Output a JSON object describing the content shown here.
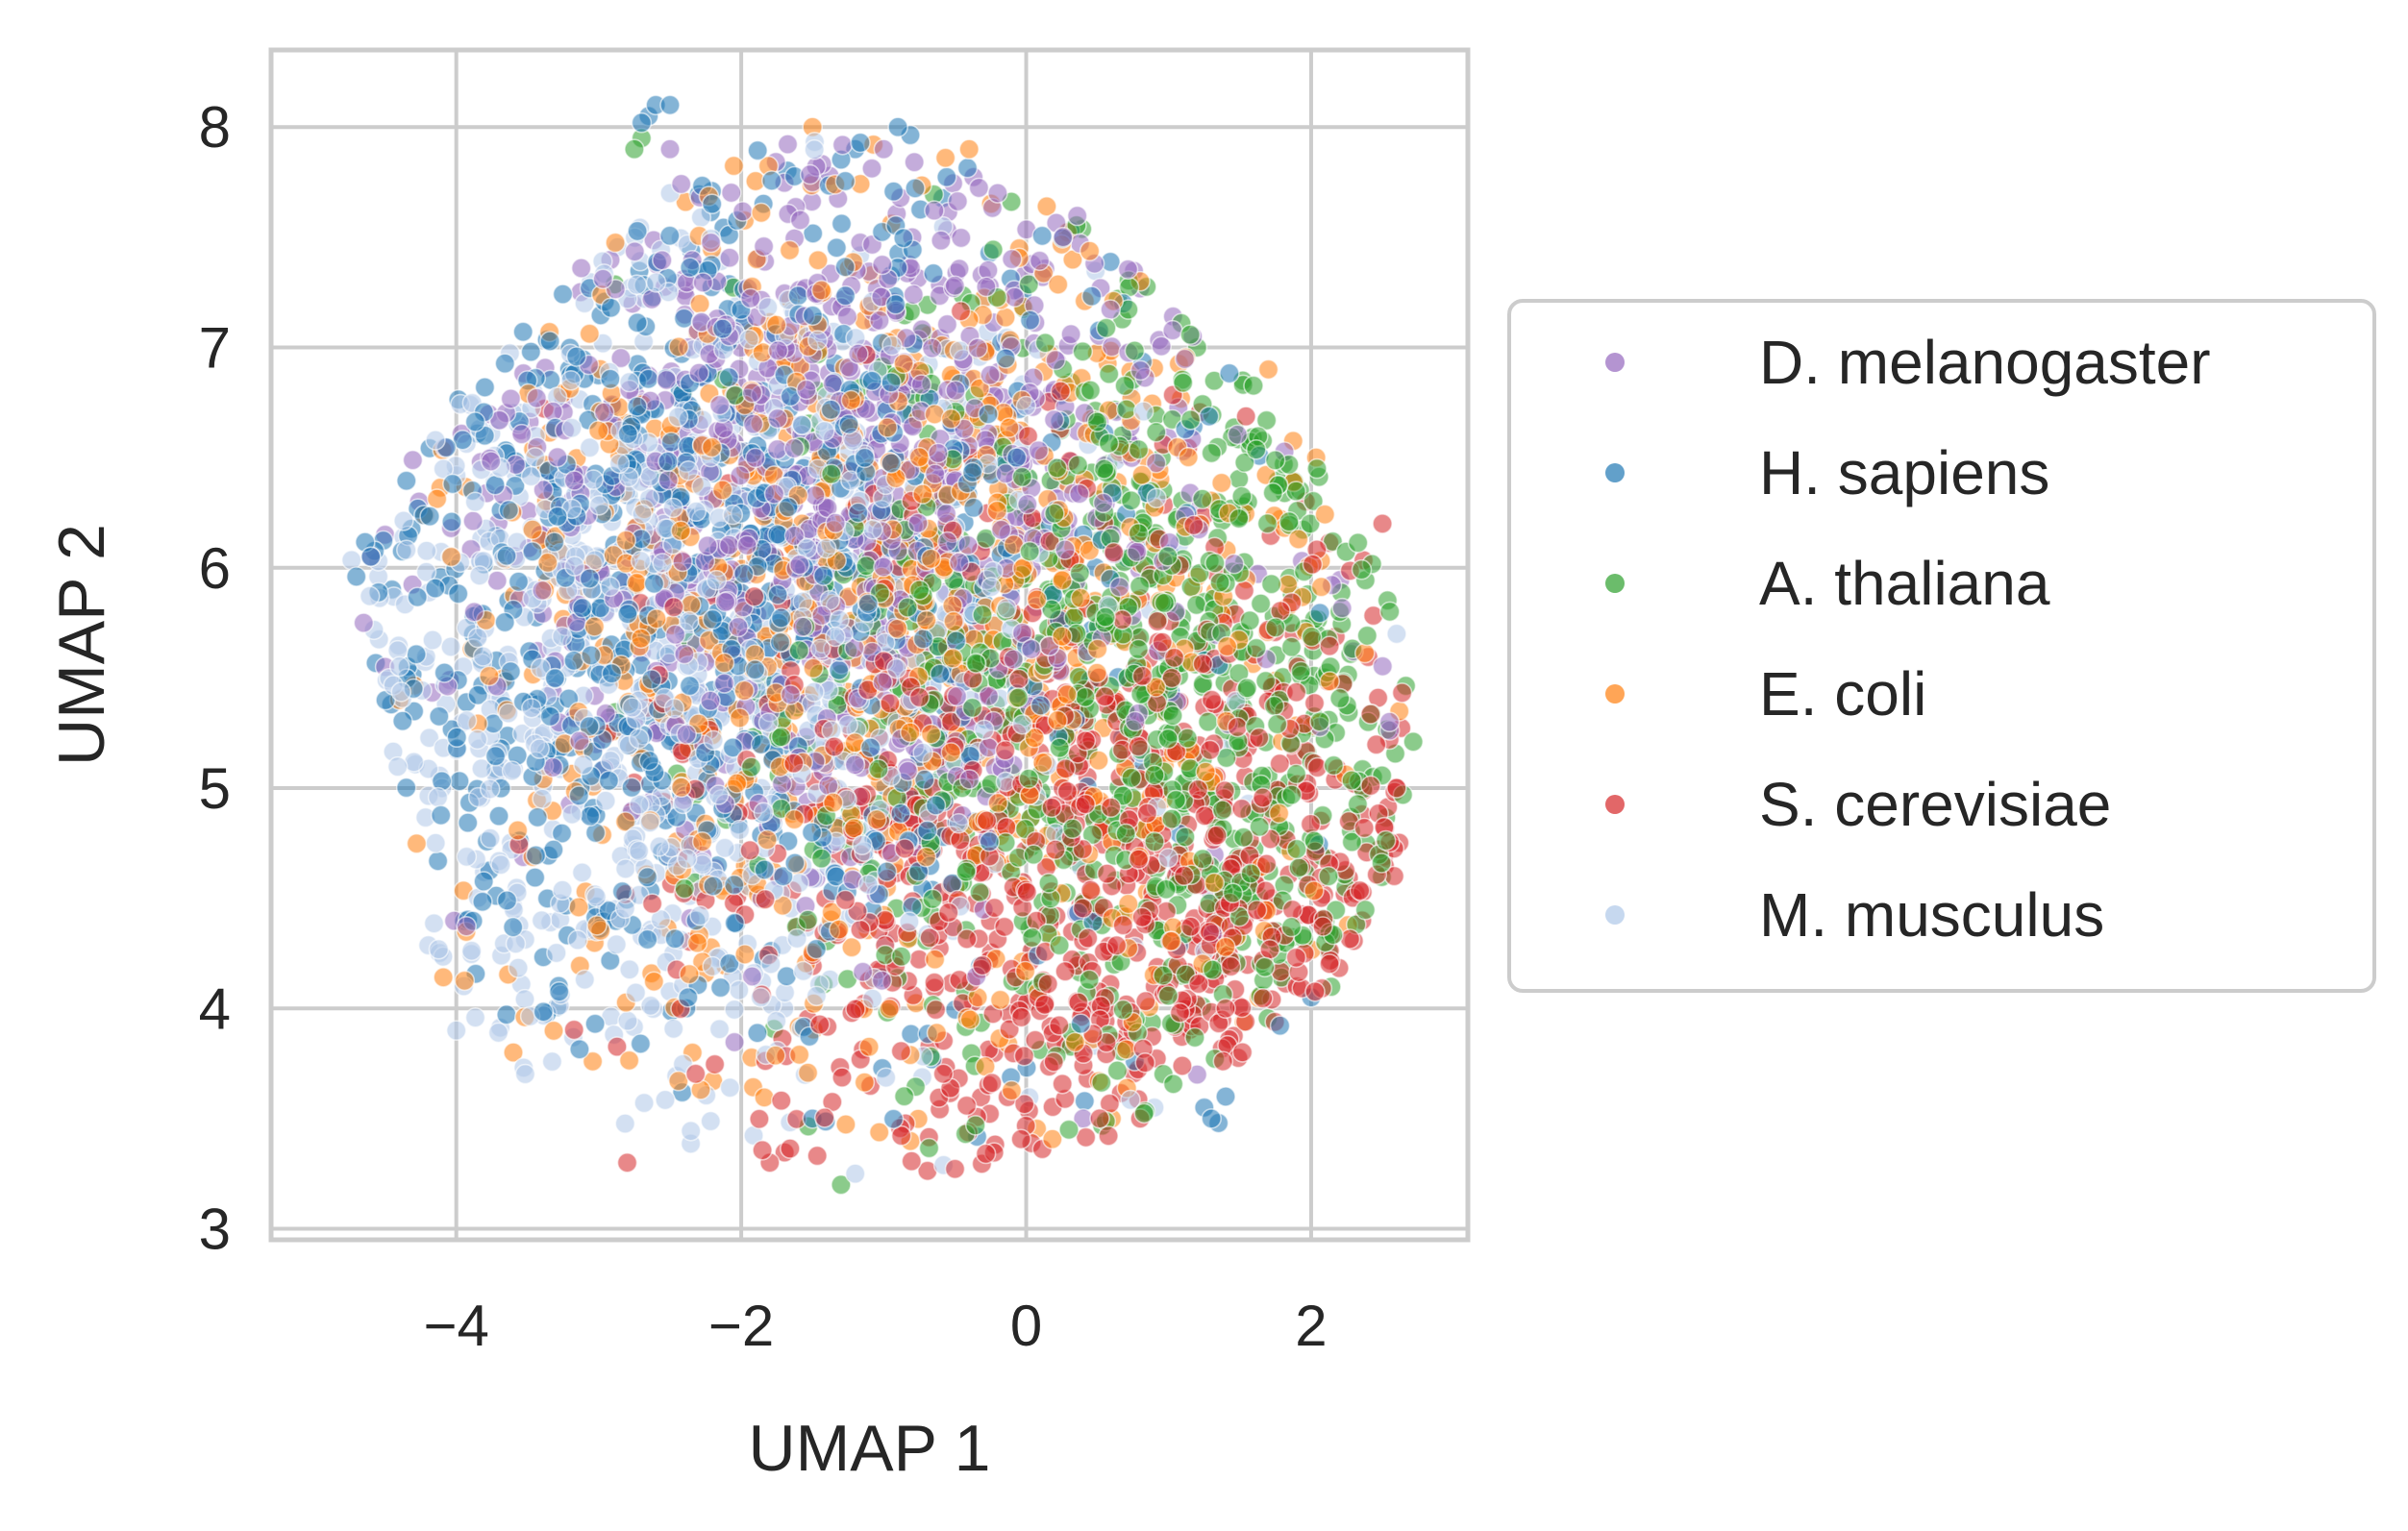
{
  "chart_data": {
    "type": "scatter",
    "title": "",
    "xlabel": "UMAP 1",
    "ylabel": "UMAP 2",
    "xlim": [
      -5.3,
      3.1
    ],
    "ylim": [
      2.95,
      8.35
    ],
    "xticks": [
      -4,
      -2,
      0,
      2
    ],
    "yticks": [
      3,
      4,
      5,
      6,
      7,
      8
    ],
    "xtick_labels": [
      "−4",
      "−2",
      "0",
      "2"
    ],
    "ytick_labels": [
      "3",
      "4",
      "5",
      "6",
      "7",
      "8"
    ],
    "grid": true,
    "legend_position": "center-right outside",
    "point_alpha": 0.55,
    "series": [
      {
        "name": "D. melanogaster",
        "color": "#9467bd",
        "region": {
          "center": [
            -1.3,
            6.4
          ],
          "spread": [
            1.4,
            0.85
          ]
        },
        "points": [
          [
            -4.6,
            6.05
          ],
          [
            -4.5,
            6.15
          ],
          [
            -4.65,
            5.75
          ],
          [
            -4.5,
            5.55
          ],
          [
            -2.5,
            7.9
          ],
          [
            -1.0,
            7.9
          ],
          [
            -1.5,
            7.75
          ],
          [
            -0.2,
            7.7
          ],
          [
            -0.8,
            7.5
          ],
          [
            2.55,
            5.3
          ],
          [
            1.2,
            3.7
          ],
          [
            0.4,
            3.5
          ],
          [
            -3.2,
            5.9
          ],
          [
            -2.2,
            6.9
          ]
        ]
      },
      {
        "name": "H. sapiens",
        "color": "#1f77b4",
        "region": {
          "center": [
            -2.3,
            6.0
          ],
          "spread": [
            1.5,
            1.0
          ]
        },
        "points": [
          [
            -2.65,
            8.05
          ],
          [
            -2.6,
            8.1
          ],
          [
            -2.7,
            8.02
          ],
          [
            -2.5,
            8.1
          ],
          [
            -0.9,
            8.0
          ],
          [
            -1.2,
            7.9
          ],
          [
            -4.6,
            6.05
          ],
          [
            1.3,
            3.5
          ],
          [
            1.35,
            3.48
          ],
          [
            1.25,
            3.55
          ],
          [
            1.4,
            3.6
          ],
          [
            2.0,
            4.05
          ],
          [
            -1.5,
            3.5
          ],
          [
            -3.8,
            6.6
          ]
        ]
      },
      {
        "name": "A. thaliana",
        "color": "#2ca02c",
        "region": {
          "center": [
            0.9,
            5.4
          ],
          "spread": [
            1.3,
            0.95
          ]
        },
        "points": [
          [
            -2.7,
            7.95
          ],
          [
            -2.75,
            7.9
          ],
          [
            1.2,
            7.0
          ],
          [
            2.4,
            5.3
          ],
          [
            2.1,
            4.3
          ],
          [
            -1.3,
            3.2
          ],
          [
            0.3,
            3.45
          ],
          [
            2.2,
            5.8
          ]
        ]
      },
      {
        "name": "E. coli",
        "color": "#ff7f0e",
        "region": {
          "center": [
            -0.9,
            5.8
          ],
          "spread": [
            1.6,
            1.1
          ]
        },
        "points": [
          [
            -1.5,
            8.0
          ],
          [
            -0.4,
            7.9
          ],
          [
            0.8,
            7.3
          ],
          [
            -3.6,
            3.8
          ],
          [
            -4.4,
            5.4
          ],
          [
            1.7,
            6.9
          ],
          [
            0.6,
            3.5
          ]
        ]
      },
      {
        "name": "S. cerevisiae",
        "color": "#d62728",
        "region": {
          "center": [
            0.7,
            4.6
          ],
          "spread": [
            1.5,
            0.85
          ]
        },
        "points": [
          [
            -2.8,
            3.3
          ],
          [
            0.8,
            3.5
          ],
          [
            2.6,
            5.0
          ],
          [
            2.5,
            6.2
          ],
          [
            1.9,
            4.1
          ],
          [
            -1.8,
            3.3
          ],
          [
            1.4,
            4.0
          ]
        ]
      },
      {
        "name": "M. musculus",
        "color": "#aec7e8",
        "region": {
          "center": [
            -2.6,
            5.6
          ],
          "spread": [
            1.4,
            1.0
          ]
        },
        "points": [
          [
            -2.5,
            7.7
          ],
          [
            2.6,
            5.7
          ],
          [
            -3.1,
            7.2
          ],
          [
            -4.1,
            5.0
          ],
          [
            -1.2,
            3.25
          ],
          [
            -4.0,
            3.9
          ],
          [
            0.9,
            3.55
          ]
        ]
      }
    ]
  }
}
